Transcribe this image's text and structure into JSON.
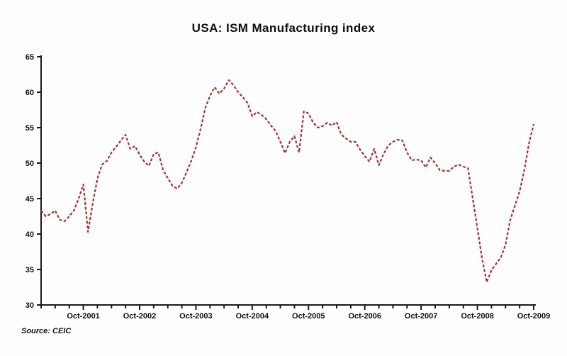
{
  "chart": {
    "title": "USA: ISM Manufacturing index",
    "source": "Source: CEIC"
  },
  "chart_data": {
    "type": "line",
    "title": "USA: ISM Manufacturing index",
    "source": "Source: CEIC",
    "x_unit": "month",
    "x_start": "Jan-2001",
    "x_end": "Oct-2009",
    "x_tick_labels": [
      "Oct-2001",
      "Oct-2002",
      "Oct-2003",
      "Oct-2004",
      "Oct-2005",
      "Oct-2006",
      "Oct-2007",
      "Oct-2008",
      "Oct-2009"
    ],
    "x_minor_tick_every_months": 3,
    "y_ticks": [
      30,
      35,
      40,
      45,
      50,
      55,
      60,
      65
    ],
    "ylim": [
      30,
      65
    ],
    "grid": false,
    "legend": false,
    "line_style": "dashed",
    "line_color": "#a83030",
    "axis_color": "#1a1a1a",
    "series": [
      {
        "name": "ISM Manufacturing index",
        "frequency": "monthly Jan-2001 to Oct-2009",
        "values": [
          43.3,
          42.5,
          42.8,
          43.3,
          42.0,
          41.8,
          42.5,
          43.3,
          45.0,
          47.0,
          40.3,
          44.3,
          47.8,
          49.8,
          50.3,
          51.5,
          52.3,
          53.2,
          54.0,
          52.0,
          52.4,
          51.2,
          50.2,
          49.6,
          51.3,
          51.5,
          49.0,
          47.9,
          46.8,
          46.4,
          47.2,
          48.7,
          50.3,
          52.2,
          54.8,
          57.8,
          59.5,
          60.7,
          59.8,
          60.5,
          61.7,
          61.0,
          60.0,
          59.3,
          58.5,
          56.6,
          57.2,
          56.8,
          56.2,
          55.3,
          54.5,
          53.0,
          51.4,
          53.0,
          53.8,
          51.5,
          57.3,
          57.0,
          55.7,
          55.0,
          55.2,
          55.7,
          55.3,
          55.8,
          54.0,
          53.5,
          53.0,
          53.0,
          51.9,
          51.0,
          50.2,
          52.0,
          49.7,
          51.3,
          52.5,
          53.0,
          53.3,
          53.2,
          51.5,
          50.4,
          50.5,
          50.4,
          49.4,
          50.8,
          50.0,
          49.0,
          48.9,
          48.9,
          49.5,
          49.8,
          49.5,
          49.3,
          45.0,
          40.8,
          36.5,
          33.2,
          34.9,
          35.8,
          36.7,
          38.5,
          42.0,
          44.0,
          46.0,
          49.0,
          52.8,
          55.5
        ]
      }
    ]
  }
}
